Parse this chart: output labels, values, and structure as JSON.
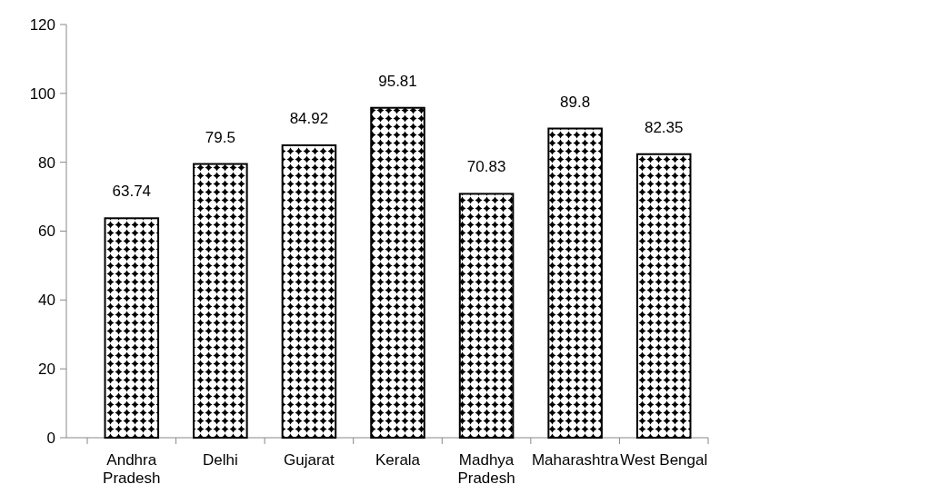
{
  "chart_data": {
    "type": "bar",
    "categories": [
      "Andhra Pradesh",
      "Delhi",
      "Gujarat",
      "Kerala",
      "Madhya Pradesh",
      "Maharashtra",
      "West Bengal"
    ],
    "values": [
      63.74,
      79.5,
      84.92,
      95.81,
      70.83,
      89.8,
      82.35
    ],
    "color": "#000000",
    "ylim": [
      0,
      120
    ],
    "yticks": [
      0,
      20,
      40,
      60,
      80,
      100,
      120
    ],
    "data_labels": true
  }
}
